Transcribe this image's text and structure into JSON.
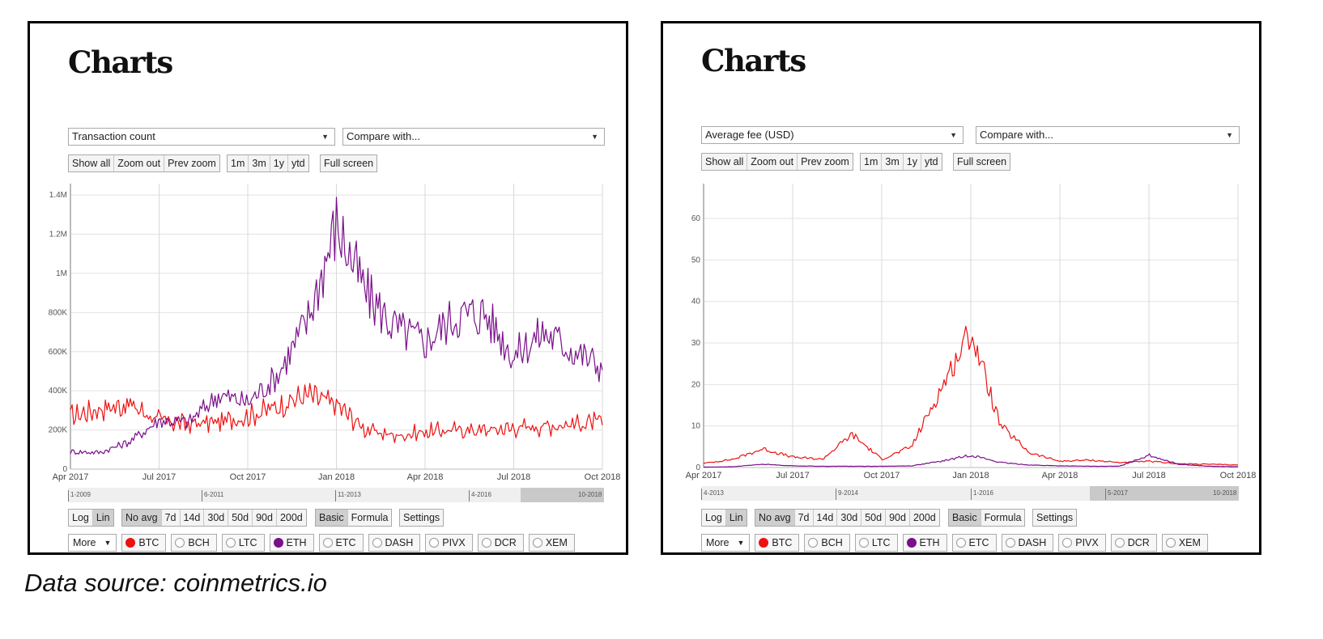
{
  "caption": "Data source: coinmetrics.io",
  "panels": [
    {
      "title": "Charts",
      "metric_select": "Transaction count",
      "compare_select": "Compare with...",
      "zoom_buttons": [
        "Show all",
        "Zoom out",
        "Prev zoom"
      ],
      "range_buttons": [
        "1m",
        "3m",
        "1y",
        "ytd"
      ],
      "fullscreen_button": "Full screen",
      "scale_buttons": [
        "Log",
        "Lin"
      ],
      "scale_active": "Lin",
      "avg_buttons": [
        "No avg",
        "7d",
        "14d",
        "30d",
        "50d",
        "90d",
        "200d"
      ],
      "avg_active": "No avg",
      "mode_buttons": [
        "Basic",
        "Formula"
      ],
      "mode_active": "Basic",
      "settings_button": "Settings",
      "more_select": "More",
      "coins": [
        {
          "label": "BTC",
          "selected": true,
          "color": "#ee1111"
        },
        {
          "label": "BCH",
          "selected": false
        },
        {
          "label": "LTC",
          "selected": false
        },
        {
          "label": "ETH",
          "selected": true,
          "color": "#7a0f8a"
        },
        {
          "label": "ETC",
          "selected": false
        },
        {
          "label": "DASH",
          "selected": false
        },
        {
          "label": "PIVX",
          "selected": false
        },
        {
          "label": "DCR",
          "selected": false
        },
        {
          "label": "XEM",
          "selected": false
        }
      ],
      "navigator_labels": [
        "1-2009",
        "6-2011",
        "11-2013",
        "4-2016",
        "10-2018"
      ]
    },
    {
      "title": "Charts",
      "metric_select": "Average fee (USD)",
      "compare_select": "Compare with...",
      "zoom_buttons": [
        "Show all",
        "Zoom out",
        "Prev zoom"
      ],
      "range_buttons": [
        "1m",
        "3m",
        "1y",
        "ytd"
      ],
      "fullscreen_button": "Full screen",
      "scale_buttons": [
        "Log",
        "Lin"
      ],
      "scale_active": "Lin",
      "avg_buttons": [
        "No avg",
        "7d",
        "14d",
        "30d",
        "50d",
        "90d",
        "200d"
      ],
      "avg_active": "No avg",
      "mode_buttons": [
        "Basic",
        "Formula"
      ],
      "mode_active": "Basic",
      "settings_button": "Settings",
      "more_select": "More",
      "coins": [
        {
          "label": "BTC",
          "selected": true,
          "color": "#ee1111"
        },
        {
          "label": "BCH",
          "selected": false
        },
        {
          "label": "LTC",
          "selected": false
        },
        {
          "label": "ETH",
          "selected": true,
          "color": "#7a0f8a"
        },
        {
          "label": "ETC",
          "selected": false
        },
        {
          "label": "DASH",
          "selected": false
        },
        {
          "label": "PIVX",
          "selected": false
        },
        {
          "label": "DCR",
          "selected": false
        },
        {
          "label": "XEM",
          "selected": false
        }
      ],
      "navigator_labels": [
        "4-2013",
        "9-2014",
        "1-2016",
        "5-2017",
        "10-2018"
      ]
    }
  ],
  "chart_data": [
    {
      "type": "line",
      "title": "Transaction count",
      "xlabel": "",
      "ylabel": "",
      "x_ticks": [
        "Apr 2017",
        "Jul 2017",
        "Oct 2017",
        "Jan 2018",
        "Apr 2018",
        "Jul 2018",
        "Oct 2018"
      ],
      "y_ticks": [
        "0",
        "200K",
        "400K",
        "600K",
        "800K",
        "1M",
        "1.2M",
        "1.4M"
      ],
      "ylim": [
        0,
        1450000
      ],
      "grid": true,
      "legend": "radio buttons below chart",
      "x": [
        "2017-04",
        "2017-05",
        "2017-06",
        "2017-07",
        "2017-08",
        "2017-09",
        "2017-10",
        "2017-11",
        "2017-12",
        "2018-01",
        "2018-02",
        "2018-03",
        "2018-04",
        "2018-05",
        "2018-06",
        "2018-07",
        "2018-08",
        "2018-09",
        "2018-10"
      ],
      "series": [
        {
          "name": "BTC",
          "color": "#ee1111",
          "values": [
            270000,
            310000,
            330000,
            250000,
            230000,
            240000,
            270000,
            320000,
            380000,
            330000,
            200000,
            170000,
            190000,
            200000,
            200000,
            210000,
            220000,
            230000,
            240000
          ]
        },
        {
          "name": "ETH",
          "color": "#7a0f8a",
          "values": [
            90000,
            85000,
            140000,
            250000,
            240000,
            380000,
            340000,
            480000,
            750000,
            1250000,
            900000,
            720000,
            650000,
            780000,
            800000,
            580000,
            700000,
            610000,
            520000
          ]
        }
      ]
    },
    {
      "type": "line",
      "title": "Average fee (USD)",
      "xlabel": "",
      "ylabel": "",
      "x_ticks": [
        "Apr 2017",
        "Jul 2017",
        "Oct 2017",
        "Jan 2018",
        "Apr 2018",
        "Jul 2018",
        "Oct 2018"
      ],
      "y_ticks": [
        "0",
        "10",
        "20",
        "30",
        "40",
        "50",
        "60"
      ],
      "ylim": [
        0,
        68
      ],
      "grid": true,
      "legend": "radio buttons below chart",
      "x": [
        "2017-04",
        "2017-05",
        "2017-06",
        "2017-07",
        "2017-08",
        "2017-09",
        "2017-10",
        "2017-11",
        "2017-12",
        "2018-01",
        "2018-02",
        "2018-03",
        "2018-04",
        "2018-05",
        "2018-06",
        "2018-07",
        "2018-08",
        "2018-09",
        "2018-10"
      ],
      "series": [
        {
          "name": "BTC",
          "color": "#ee1111",
          "values": [
            1.0,
            2.0,
            4.5,
            2.5,
            2.0,
            8.0,
            2.0,
            5.0,
            19.0,
            33.0,
            10.0,
            3.5,
            1.5,
            1.8,
            1.2,
            1.5,
            0.9,
            0.8,
            0.6
          ]
        },
        {
          "name": "ETH",
          "color": "#7a0f8a",
          "values": [
            0.1,
            0.2,
            0.8,
            0.4,
            0.3,
            0.3,
            0.3,
            0.4,
            1.5,
            3.0,
            1.2,
            0.6,
            0.4,
            0.3,
            0.3,
            3.0,
            0.8,
            0.3,
            0.2
          ]
        }
      ]
    }
  ]
}
